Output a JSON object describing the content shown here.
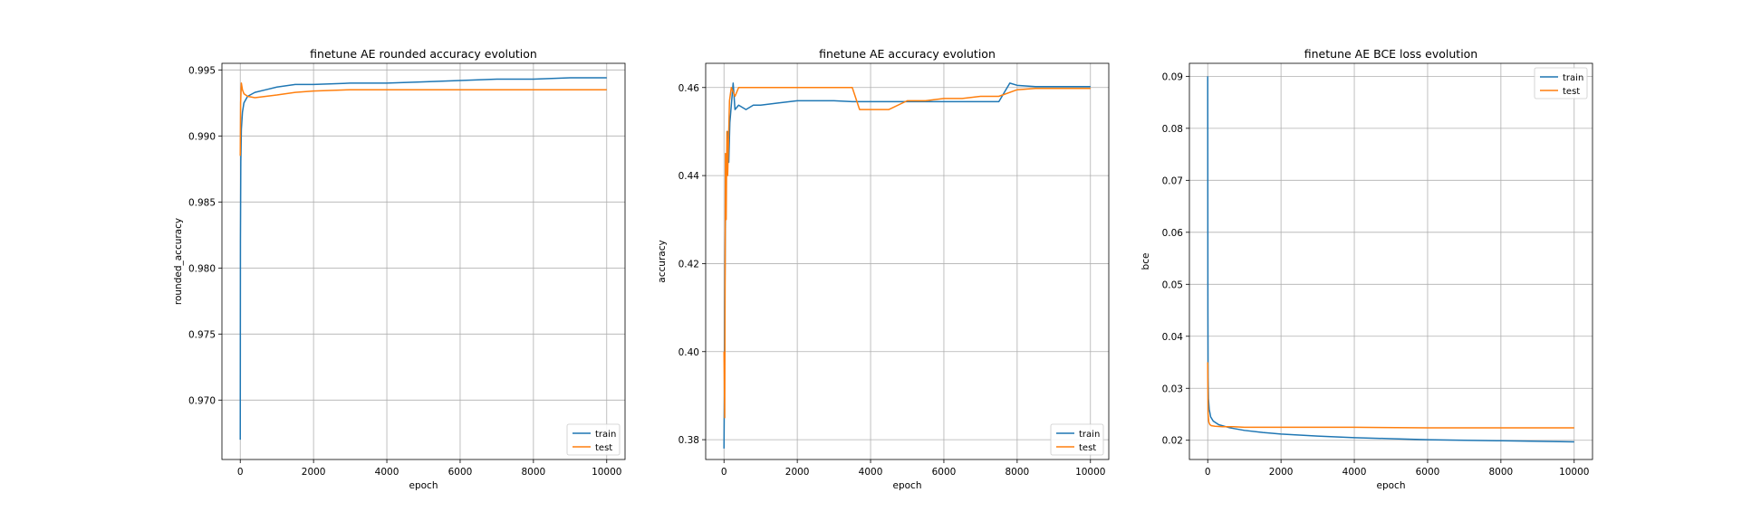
{
  "colors": {
    "train": "#1f77b4",
    "test": "#ff7f0e",
    "grid": "#b0b0b0"
  },
  "chart_data": [
    {
      "type": "line",
      "title": "finetune AE rounded accuracy evolution",
      "xlabel": "epoch",
      "ylabel": "rounded_accuracy",
      "xlim": [
        -500,
        10500
      ],
      "ylim": [
        0.9655,
        0.9955
      ],
      "xticks": [
        0,
        2000,
        4000,
        6000,
        8000,
        10000
      ],
      "xtick_labels": [
        "0",
        "2000",
        "4000",
        "6000",
        "8000",
        "10000"
      ],
      "yticks": [
        0.97,
        0.975,
        0.98,
        0.985,
        0.99,
        0.995
      ],
      "ytick_labels": [
        "0.970",
        "0.975",
        "0.980",
        "0.985",
        "0.990",
        "0.995"
      ],
      "grid": true,
      "legend_position": "lower-right",
      "series": [
        {
          "name": "train",
          "x": [
            0,
            5,
            15,
            30,
            60,
            100,
            200,
            400,
            700,
            1000,
            1500,
            2000,
            3000,
            4000,
            5000,
            6000,
            7000,
            8000,
            9000,
            10000
          ],
          "y": [
            0.967,
            0.982,
            0.988,
            0.9905,
            0.9918,
            0.9925,
            0.993,
            0.9933,
            0.9935,
            0.9937,
            0.9939,
            0.9939,
            0.994,
            0.994,
            0.9941,
            0.9942,
            0.9943,
            0.9943,
            0.9944,
            0.9944
          ]
        },
        {
          "name": "test",
          "x": [
            0,
            10,
            30,
            60,
            100,
            200,
            400,
            700,
            1000,
            1500,
            2000,
            3000,
            4000,
            5000,
            6000,
            7000,
            8000,
            9000,
            10000
          ],
          "y": [
            0.9885,
            0.9925,
            0.994,
            0.9935,
            0.9932,
            0.993,
            0.9929,
            0.993,
            0.9931,
            0.9933,
            0.9934,
            0.9935,
            0.9935,
            0.9935,
            0.9935,
            0.9935,
            0.9935,
            0.9935,
            0.9935
          ]
        }
      ]
    },
    {
      "type": "line",
      "title": "finetune AE accuracy evolution",
      "xlabel": "epoch",
      "ylabel": "accuracy",
      "xlim": [
        -500,
        10500
      ],
      "ylim": [
        0.3755,
        0.4655
      ],
      "xticks": [
        0,
        2000,
        4000,
        6000,
        8000,
        10000
      ],
      "xtick_labels": [
        "0",
        "2000",
        "4000",
        "6000",
        "8000",
        "10000"
      ],
      "yticks": [
        0.38,
        0.4,
        0.42,
        0.44,
        0.46
      ],
      "ytick_labels": [
        "0.38",
        "0.40",
        "0.42",
        "0.44",
        "0.46"
      ],
      "grid": true,
      "legend_position": "lower-right",
      "series": [
        {
          "name": "train",
          "x": [
            0,
            10,
            20,
            40,
            60,
            80,
            100,
            130,
            160,
            200,
            250,
            300,
            400,
            600,
            800,
            1000,
            1500,
            2000,
            2500,
            3000,
            3500,
            4000,
            5000,
            6000,
            7000,
            7500,
            7800,
            8000,
            8500,
            9000,
            9500,
            10000
          ],
          "y": [
            0.378,
            0.39,
            0.41,
            0.43,
            0.44,
            0.445,
            0.45,
            0.443,
            0.452,
            0.456,
            0.461,
            0.455,
            0.456,
            0.455,
            0.456,
            0.456,
            0.4565,
            0.457,
            0.457,
            0.457,
            0.4568,
            0.4568,
            0.4568,
            0.4568,
            0.4568,
            0.4568,
            0.461,
            0.4605,
            0.4602,
            0.4602,
            0.4602,
            0.4602
          ]
        },
        {
          "name": "test",
          "x": [
            0,
            20,
            40,
            60,
            80,
            100,
            150,
            200,
            300,
            400,
            600,
            1000,
            2000,
            3000,
            3500,
            3700,
            4000,
            4500,
            5000,
            5500,
            6000,
            6500,
            7000,
            7500,
            8000,
            8500,
            9000,
            9500,
            10000
          ],
          "y": [
            0.4,
            0.385,
            0.445,
            0.43,
            0.45,
            0.44,
            0.457,
            0.46,
            0.458,
            0.46,
            0.46,
            0.46,
            0.46,
            0.46,
            0.46,
            0.455,
            0.455,
            0.455,
            0.457,
            0.457,
            0.4575,
            0.4575,
            0.458,
            0.458,
            0.4595,
            0.4598,
            0.4598,
            0.4598,
            0.4598
          ]
        }
      ]
    },
    {
      "type": "line",
      "title": "finetune AE BCE loss evolution",
      "xlabel": "epoch",
      "ylabel": "bce",
      "xlim": [
        -500,
        10500
      ],
      "ylim": [
        0.0163,
        0.0925
      ],
      "xticks": [
        0,
        2000,
        4000,
        6000,
        8000,
        10000
      ],
      "xtick_labels": [
        "0",
        "2000",
        "4000",
        "6000",
        "8000",
        "10000"
      ],
      "yticks": [
        0.02,
        0.03,
        0.04,
        0.05,
        0.06,
        0.07,
        0.08,
        0.09
      ],
      "ytick_labels": [
        "0.02",
        "0.03",
        "0.04",
        "0.05",
        "0.06",
        "0.07",
        "0.08",
        "0.09"
      ],
      "grid": true,
      "legend_position": "upper-right",
      "series": [
        {
          "name": "train",
          "x": [
            0,
            5,
            10,
            20,
            40,
            80,
            150,
            300,
            600,
            1000,
            1500,
            2000,
            3000,
            4000,
            5000,
            6000,
            7000,
            8000,
            9000,
            10000
          ],
          "y": [
            0.09,
            0.045,
            0.032,
            0.028,
            0.026,
            0.0245,
            0.0237,
            0.023,
            0.0224,
            0.0219,
            0.0215,
            0.0212,
            0.0208,
            0.0205,
            0.0203,
            0.0201,
            0.02,
            0.0199,
            0.0198,
            0.0197
          ]
        },
        {
          "name": "test",
          "x": [
            0,
            10,
            30,
            60,
            100,
            200,
            400,
            700,
            1000,
            2000,
            3000,
            4000,
            6000,
            8000,
            10000
          ],
          "y": [
            0.035,
            0.025,
            0.0235,
            0.023,
            0.0228,
            0.0227,
            0.0226,
            0.0226,
            0.0225,
            0.0225,
            0.0225,
            0.0225,
            0.0224,
            0.0224,
            0.0224
          ]
        }
      ]
    }
  ]
}
